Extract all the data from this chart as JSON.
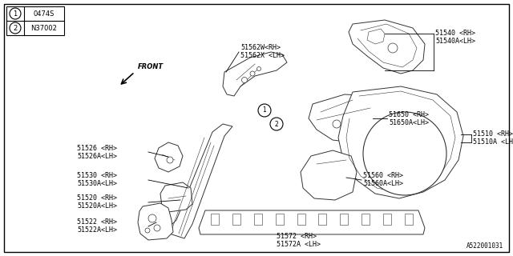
{
  "bg_color": "#ffffff",
  "line_color": "#000000",
  "part_color": "#ffffff",
  "part_stroke": "#333333",
  "legend": [
    {
      "num": "1",
      "code": "0474S"
    },
    {
      "num": "2",
      "code": "N37002"
    }
  ],
  "footer": "A522001031",
  "font_size": 6.0,
  "lw": 0.7,
  "thin_lw": 0.4
}
